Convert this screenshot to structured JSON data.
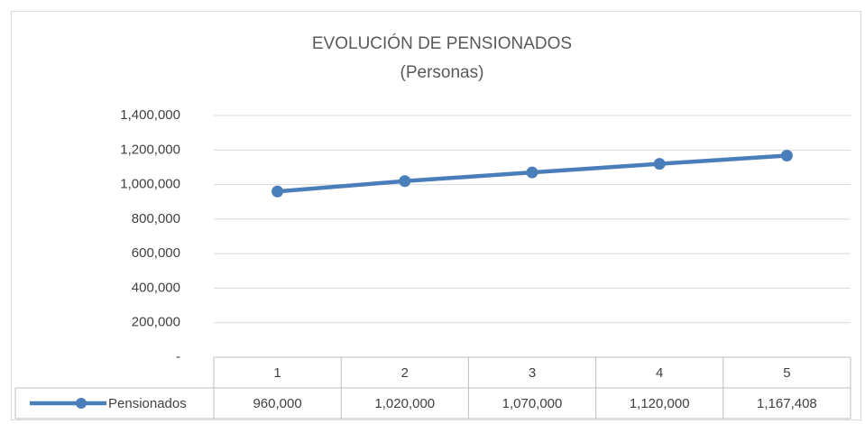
{
  "chart_data": {
    "type": "line",
    "title": "EVOLUCIÓN DE PENSIONADOS",
    "subtitle": "(Personas)",
    "categories": [
      "1",
      "2",
      "3",
      "4",
      "5"
    ],
    "series": [
      {
        "name": "Pensionados",
        "color": "#4a7ebb",
        "values": [
          960000,
          1020000,
          1070000,
          1120000,
          1167408
        ],
        "value_labels": [
          "960,000",
          "1,020,000",
          "1,070,000",
          "1,120,000",
          "1,167,408"
        ]
      }
    ],
    "ylim": [
      0,
      1400000
    ],
    "yticks": [
      {
        "value": 0,
        "label": "-"
      },
      {
        "value": 200000,
        "label": "200,000"
      },
      {
        "value": 400000,
        "label": "400,000"
      },
      {
        "value": 600000,
        "label": "600,000"
      },
      {
        "value": 800000,
        "label": "800,000"
      },
      {
        "value": 1000000,
        "label": "1,000,000"
      },
      {
        "value": 1200000,
        "label": "1,200,000"
      },
      {
        "value": 1400000,
        "label": "1,400,000"
      }
    ],
    "grid": true
  }
}
